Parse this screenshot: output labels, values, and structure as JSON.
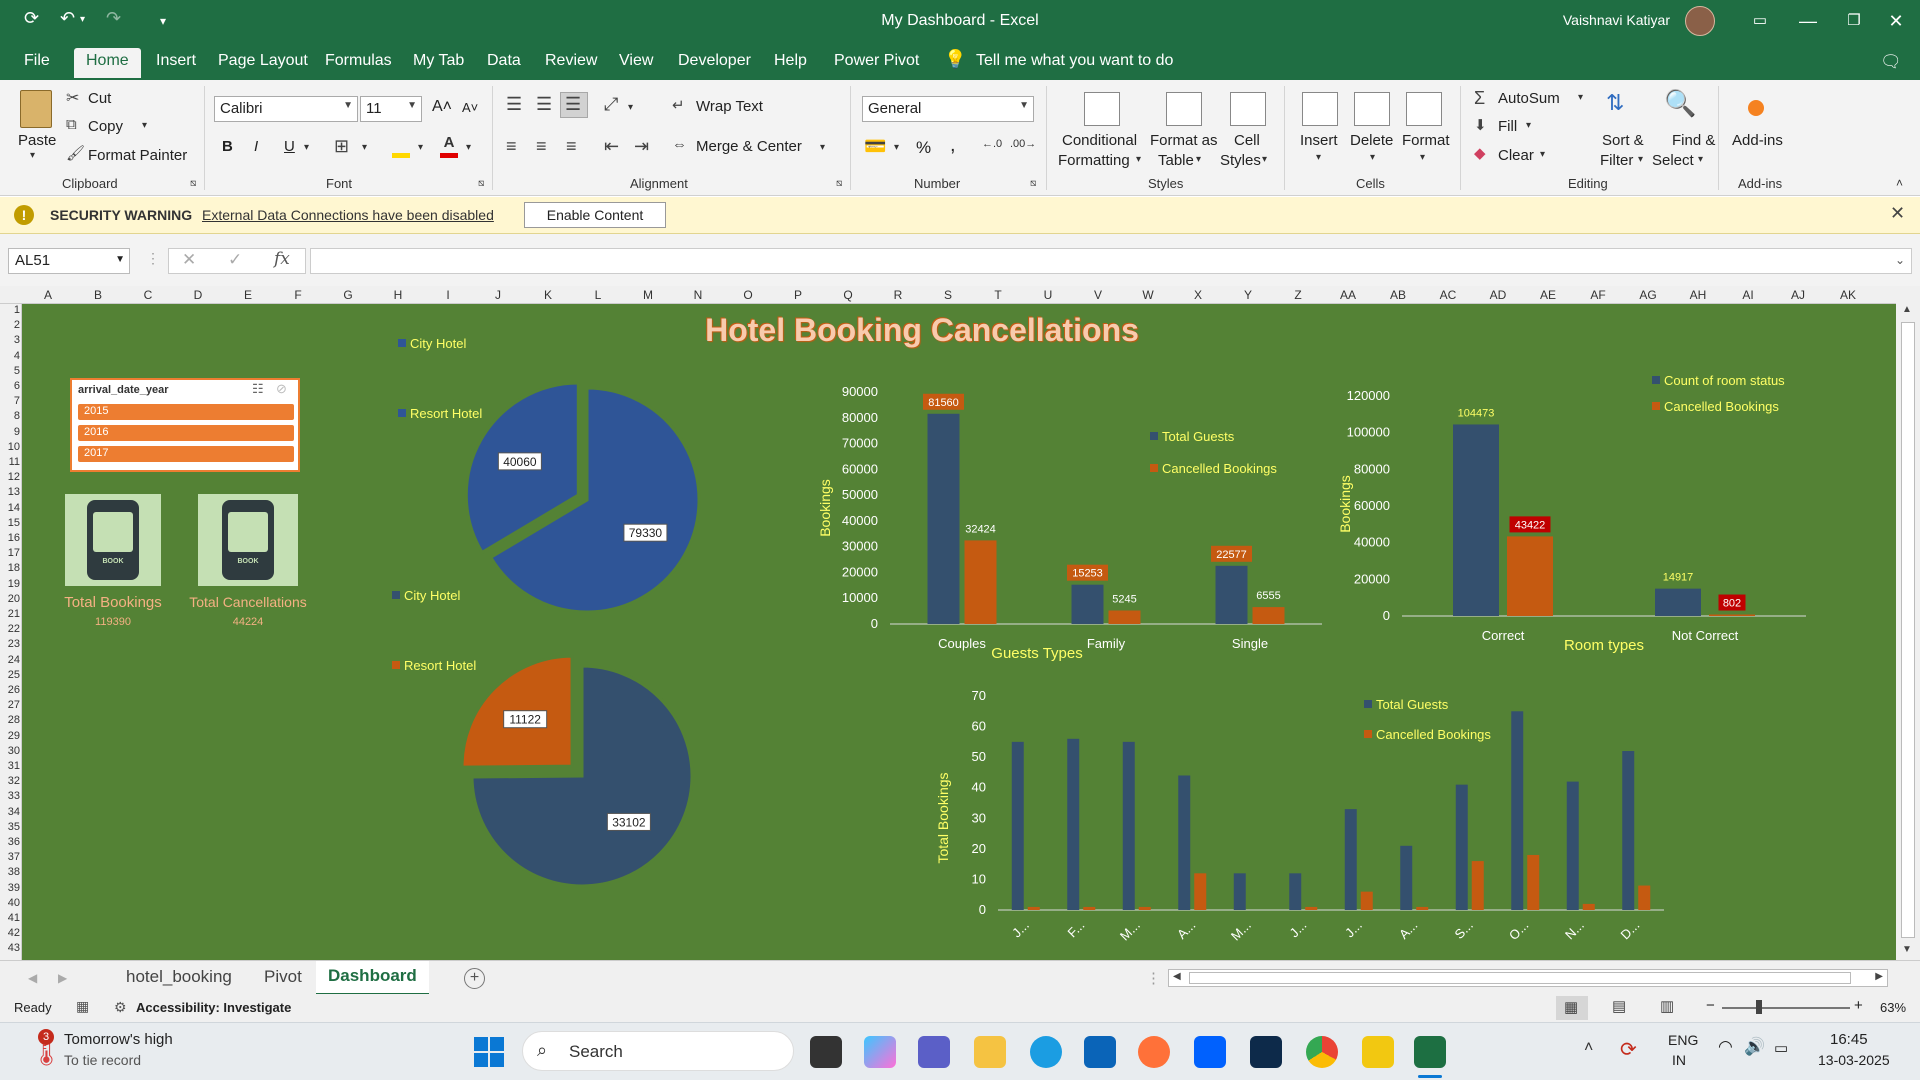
{
  "window": {
    "title": "My Dashboard  -  Excel",
    "user": "Vaishnavi Katiyar"
  },
  "menu": {
    "tabs": [
      "File",
      "Home",
      "Insert",
      "Page Layout",
      "Formulas",
      "My Tab",
      "Data",
      "Review",
      "View",
      "Developer",
      "Help",
      "Power Pivot"
    ],
    "active": "Home",
    "tell_me": "Tell me what you want to do"
  },
  "ribbon": {
    "clipboard": {
      "paste": "Paste",
      "cut": "Cut",
      "copy": "Copy",
      "format_painter": "Format Painter",
      "label": "Clipboard"
    },
    "font": {
      "name": "Calibri",
      "size": "11",
      "bold": "B",
      "italic": "I",
      "underline": "U",
      "label": "Font"
    },
    "alignment": {
      "wrap": "Wrap Text",
      "merge": "Merge & Center",
      "label": "Alignment"
    },
    "number": {
      "format": "General",
      "percent": "%",
      "comma": ",",
      "label": "Number"
    },
    "styles": {
      "conditional": "Conditional",
      "conditional2": "Formatting",
      "format_table": "Format as",
      "format_table2": "Table",
      "cell_styles": "Cell",
      "cell_styles2": "Styles",
      "label": "Styles"
    },
    "cells": {
      "insert": "Insert",
      "delete": "Delete",
      "format": "Format",
      "label": "Cells"
    },
    "editing": {
      "autosum": "AutoSum",
      "fill": "Fill",
      "clear": "Clear",
      "sort": "Sort &",
      "sort2": "Filter",
      "find": "Find &",
      "find2": "Select",
      "label": "Editing"
    },
    "addins": {
      "addins": "Add-ins",
      "label": "Add-ins"
    }
  },
  "security": {
    "label": "SECURITY WARNING",
    "message": "External Data Connections have been disabled",
    "button": "Enable Content"
  },
  "formula_bar": {
    "name_box": "AL51",
    "fx": "fx",
    "value": ""
  },
  "columns": [
    "A",
    "B",
    "C",
    "D",
    "E",
    "F",
    "G",
    "H",
    "I",
    "J",
    "K",
    "L",
    "M",
    "N",
    "O",
    "P",
    "Q",
    "R",
    "S",
    "T",
    "U",
    "V",
    "W",
    "X",
    "Y",
    "Z",
    "AA",
    "AB",
    "AC",
    "AD",
    "AE",
    "AF",
    "AG",
    "AH",
    "AI",
    "AJ",
    "AK"
  ],
  "rows": [
    "1",
    "2",
    "3",
    "4",
    "5",
    "6",
    "7",
    "8",
    "9",
    "10",
    "11",
    "12",
    "13",
    "14",
    "15",
    "16",
    "17",
    "18",
    "19",
    "20",
    "21",
    "22",
    "23",
    "24",
    "25",
    "26",
    "27",
    "28",
    "29",
    "30",
    "31",
    "32",
    "33",
    "34",
    "35",
    "36",
    "37",
    "38",
    "39",
    "40",
    "41",
    "42",
    "43"
  ],
  "dashboard": {
    "title": "Hotel Booking Cancellations",
    "slicer": {
      "header": "arrival_date_year",
      "items": [
        "2015",
        "2016",
        "2017"
      ]
    },
    "kpis": [
      {
        "label": "Total Bookings",
        "value": "119390"
      },
      {
        "label": "Total Cancellations",
        "value": "44224"
      }
    ],
    "icon_text": "BOOK"
  },
  "chart_data": [
    {
      "type": "pie",
      "title": "",
      "labels": [
        "City Hotel",
        "Resort Hotel"
      ],
      "values": [
        79330,
        40060
      ],
      "colors": [
        "#2f5597",
        "#2f5597"
      ]
    },
    {
      "type": "pie",
      "title": "",
      "labels": [
        "City Hotel",
        "Resort Hotel"
      ],
      "values": [
        33102,
        11122
      ],
      "colors": [
        "#34506e",
        "#c55a11"
      ]
    },
    {
      "type": "bar",
      "title": "",
      "categories": [
        "Couples",
        "Family",
        "Single"
      ],
      "series": [
        {
          "name": "Total Guests",
          "values": [
            81560,
            15253,
            22577
          ],
          "color": "#34506e"
        },
        {
          "name": "Cancelled Bookings",
          "values": [
            32424,
            5245,
            6555
          ],
          "color": "#c55a11"
        }
      ],
      "xlabel": "Guests Types",
      "ylabel": "Bookings",
      "ylim": [
        0,
        90000
      ],
      "yticks": [
        0,
        10000,
        20000,
        30000,
        40000,
        50000,
        60000,
        70000,
        80000,
        90000
      ],
      "legend": "right"
    },
    {
      "type": "bar",
      "title": "",
      "categories": [
        "Correct",
        "Not Correct"
      ],
      "series": [
        {
          "name": "Count of room status",
          "values": [
            104473,
            14917
          ],
          "color": "#34506e"
        },
        {
          "name": "Cancelled Bookings",
          "values": [
            43422,
            802
          ],
          "color": "#c55a11"
        }
      ],
      "xlabel": "Room types",
      "ylabel": "Bookings",
      "ylim": [
        0,
        120000
      ],
      "yticks": [
        0,
        20000,
        40000,
        60000,
        80000,
        100000,
        120000
      ],
      "legend": "top-right"
    },
    {
      "type": "bar",
      "title": "",
      "categories": [
        "J...",
        "F...",
        "M...",
        "A...",
        "M...",
        "J...",
        "J...",
        "A...",
        "S...",
        "O...",
        "N...",
        "D..."
      ],
      "series": [
        {
          "name": "Total Guests",
          "values": [
            55,
            56,
            55,
            44,
            12,
            12,
            33,
            21,
            41,
            65,
            42,
            52
          ],
          "color": "#34506e"
        },
        {
          "name": "Cancelled Bookings",
          "values": [
            1,
            1,
            1,
            12,
            0,
            1,
            6,
            1,
            16,
            18,
            2,
            8
          ],
          "color": "#c55a11"
        }
      ],
      "xlabel": "",
      "ylabel": "Total Bookings",
      "ylim": [
        0,
        70
      ],
      "yticks": [
        0,
        10,
        20,
        30,
        40,
        50,
        60,
        70
      ],
      "legend": "top-right"
    }
  ],
  "sheets": {
    "tabs": [
      "hotel_booking",
      "Pivot",
      "Dashboard"
    ],
    "active": "Dashboard"
  },
  "status": {
    "ready": "Ready",
    "accessibility": "Accessibility: Investigate",
    "zoom": "63%"
  },
  "taskbar": {
    "weather_title": "Tomorrow's high",
    "weather_sub": "To tie record",
    "weather_badge": "3",
    "search": "Search",
    "lang1": "ENG",
    "lang2": "IN",
    "time": "16:45",
    "date": "13-03-2025"
  },
  "colors": {
    "excel_green": "#1f6e43",
    "dashboard_bg": "#548235",
    "accent_orange": "#ed7d31",
    "navy": "#34506e"
  }
}
